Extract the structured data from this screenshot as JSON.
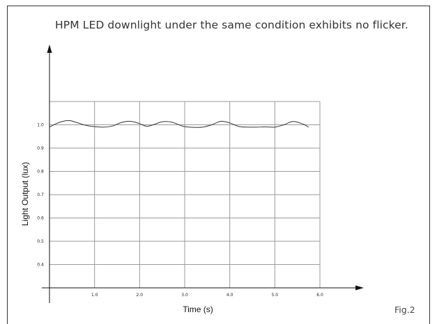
{
  "caption": "HPM LED downlight under the same condition exhibits no flicker.",
  "figure_label": "Fig.2",
  "chart_data": {
    "type": "line",
    "xlabel": "Time (s)",
    "ylabel": "Light Output (lux)",
    "xlim": [
      0,
      6.0
    ],
    "ylim": [
      0.3,
      1.1
    ],
    "x_ticks": [
      1.0,
      2.0,
      3.0,
      4.0,
      5.0,
      6.0
    ],
    "x_tick_labels": [
      "1.0",
      "2.0",
      "3.0",
      "4.0",
      "5.0",
      "6.0"
    ],
    "y_ticks": [
      0.4,
      0.5,
      0.6,
      0.7,
      0.8,
      0.9,
      1.0
    ],
    "y_tick_labels": [
      "0.4",
      "0.5",
      "0.6",
      "0.7",
      "0.8",
      "0.9",
      "1.0"
    ],
    "grid": true,
    "colors": {
      "line": "#333333",
      "grid": "#9a9a9a",
      "axis": "#111111"
    },
    "series": [
      {
        "x": [
          0.0,
          0.15,
          0.3,
          0.45,
          0.6,
          0.8,
          1.0,
          1.2,
          1.4,
          1.6,
          1.8,
          2.0,
          2.15,
          2.3,
          2.5,
          2.7,
          2.9,
          3.0,
          3.2,
          3.4,
          3.6,
          3.8,
          4.0,
          4.2,
          4.4,
          4.6,
          4.8,
          5.0,
          5.2,
          5.4,
          5.6,
          5.75
        ],
        "y": [
          0.99,
          1.005,
          1.015,
          1.018,
          1.01,
          0.998,
          0.992,
          0.99,
          0.995,
          1.01,
          1.015,
          1.005,
          0.994,
          1.0,
          1.013,
          1.012,
          0.998,
          0.992,
          0.989,
          0.99,
          1.0,
          1.015,
          1.008,
          0.993,
          0.99,
          0.99,
          0.991,
          0.99,
          1.0,
          1.014,
          1.005,
          0.99
        ]
      }
    ]
  }
}
